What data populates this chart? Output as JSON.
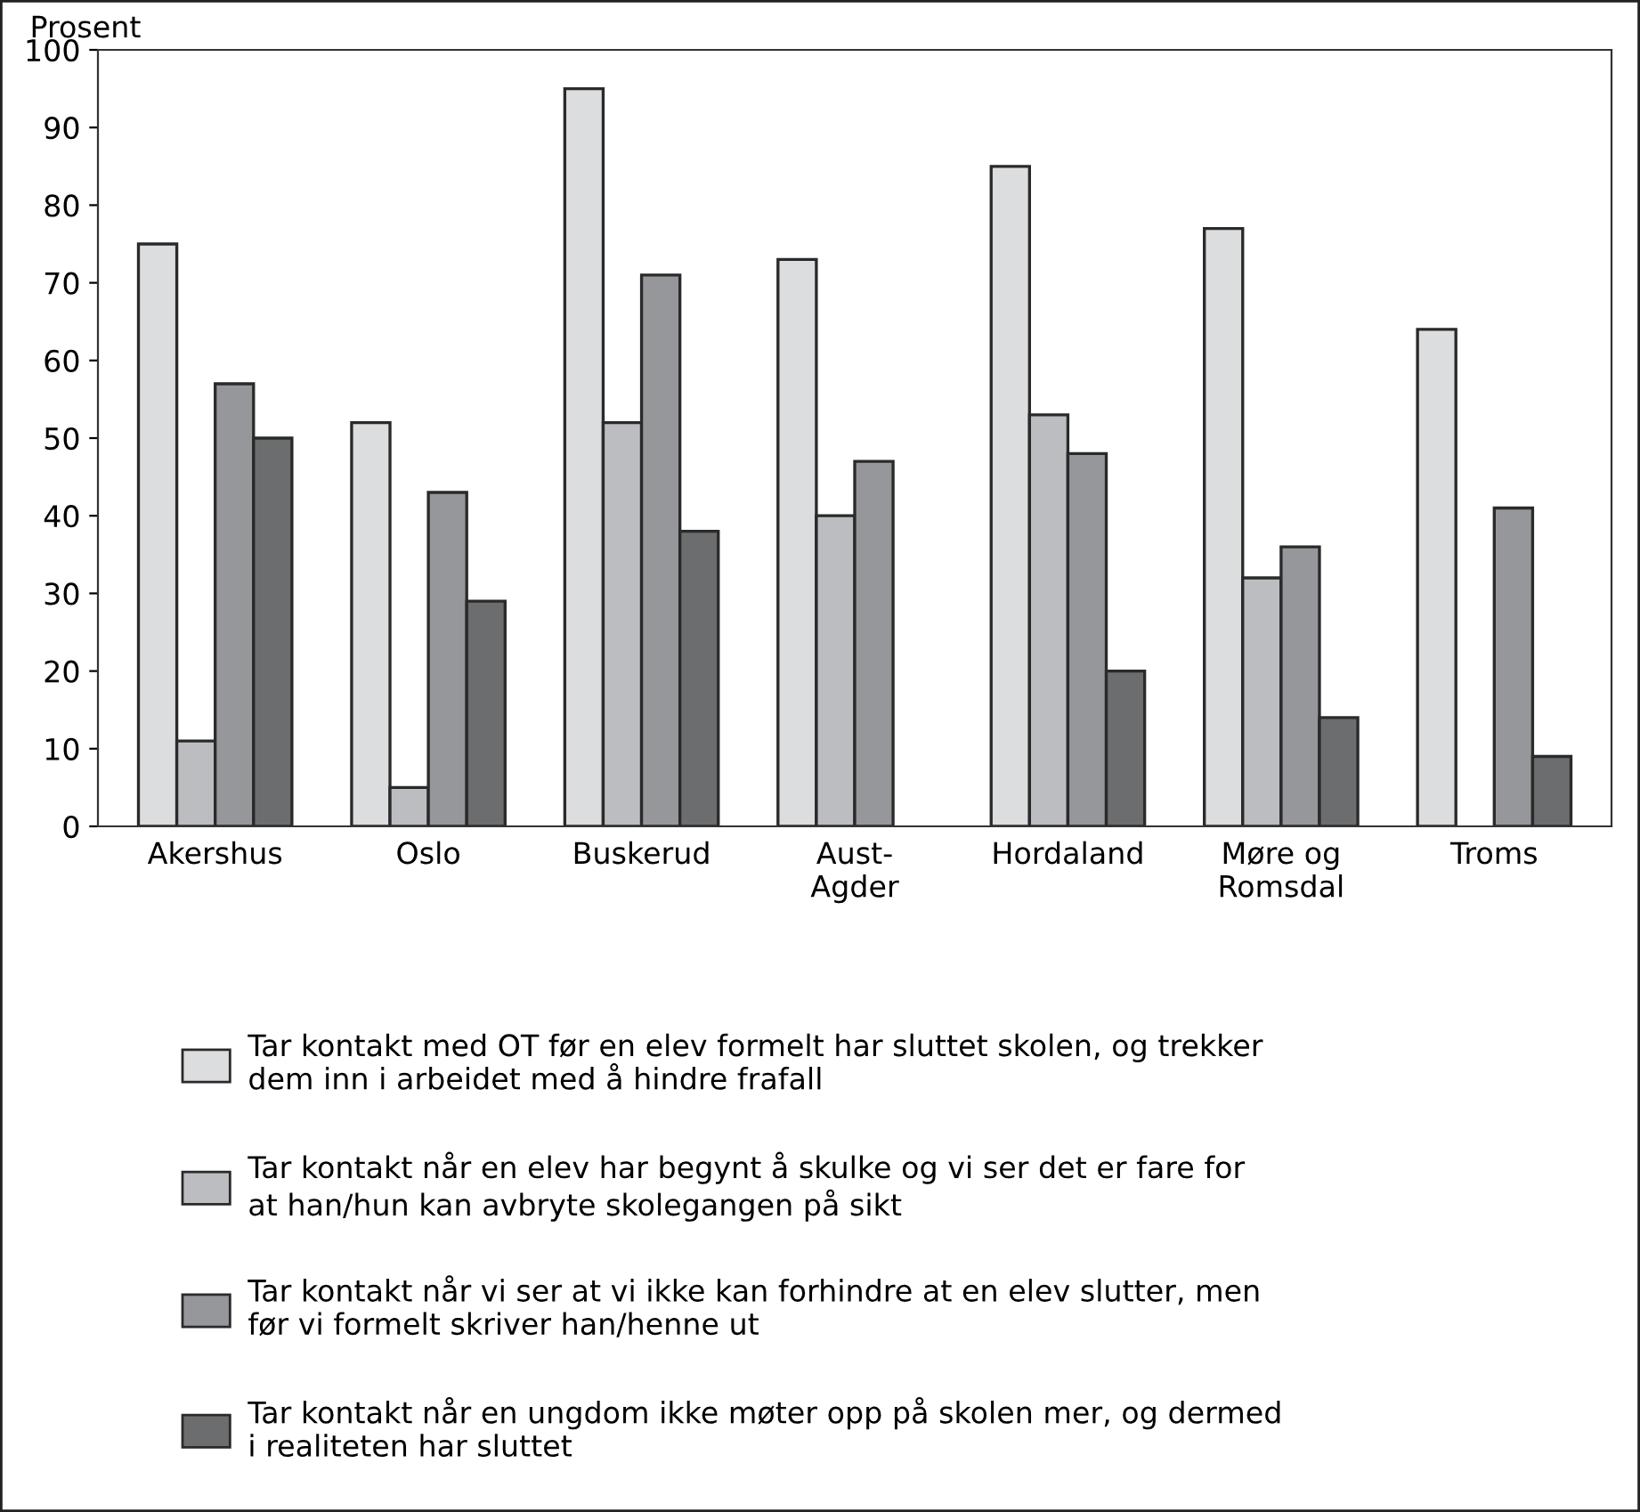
{
  "chart_data": {
    "type": "bar",
    "ylabel": "Prosent",
    "categories": [
      "Akershus",
      "Oslo",
      "Buskerud",
      "Aust-\nAgder",
      "Hordaland",
      "Møre og\nRomsdal",
      "Troms"
    ],
    "series": [
      {
        "name": "Tar kontakt med OT før en elev formelt har sluttet skolen, og trekker\ndem inn i arbeidet med å hindre frafall",
        "color": "#dcdddf",
        "values": [
          75,
          52,
          95,
          73,
          85,
          77,
          64
        ]
      },
      {
        "name": "Tar kontakt når en elev har begynt å skulke og vi ser det er fare for\nat han/hun kan avbryte skolegangen på sikt",
        "color": "#bcbdc1",
        "values": [
          11,
          5,
          52,
          40,
          53,
          32,
          null
        ]
      },
      {
        "name": "Tar kontakt når vi ser at vi ikke kan forhindre at en elev slutter, men\nfør vi formelt skriver han/henne ut",
        "color": "#96979b",
        "values": [
          57,
          43,
          71,
          47,
          48,
          36,
          41
        ]
      },
      {
        "name": "Tar kontakt når en ungdom ikke møter opp på skolen mer, og dermed\ni realiteten har sluttet",
        "color": "#6c6d6f",
        "values": [
          50,
          29,
          38,
          null,
          20,
          14,
          9
        ]
      }
    ],
    "ylim": [
      0,
      100
    ],
    "yticks": [
      0,
      10,
      20,
      30,
      40,
      50,
      60,
      70,
      80,
      90,
      100
    ],
    "grid": false,
    "legend": "bottom"
  }
}
